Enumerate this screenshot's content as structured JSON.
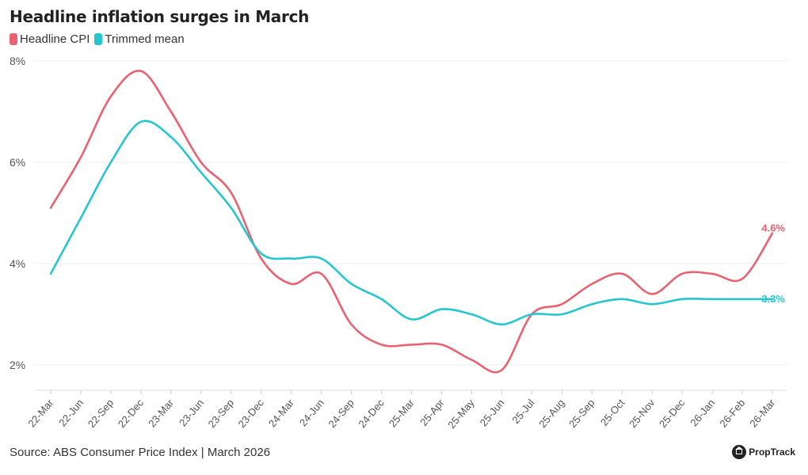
{
  "header": {
    "title": "Headline inflation surges in March"
  },
  "legend": [
    {
      "label": "Headline CPI",
      "color": "#e8636f"
    },
    {
      "label": "Trimmed mean",
      "color": "#26c6cf"
    }
  ],
  "footer": {
    "source": "Source: ABS Consumer Price Index | March 2026",
    "brand": "PropTrack"
  },
  "chart_data": {
    "type": "line",
    "title": "Headline inflation surges in March",
    "xlabel": "",
    "ylabel": "",
    "ylim": [
      1.5,
      8
    ],
    "yticks": [
      2,
      4,
      6,
      8
    ],
    "ytick_labels": [
      "2%",
      "4%",
      "6%",
      "8%"
    ],
    "grid": "horizontal",
    "legend_position": "top-left",
    "categories": [
      "22-Mar",
      "22-Jun",
      "22-Sep",
      "22-Dec",
      "23-Mar",
      "23-Jun",
      "23-Sep",
      "23-Dec",
      "24-Mar",
      "24-Jun",
      "24-Sep",
      "24-Dec",
      "25-Mar",
      "25-Apr",
      "25-May",
      "25-Jun",
      "25-Jul",
      "25-Aug",
      "25-Sep",
      "25-Oct",
      "25-Nov",
      "25-Dec",
      "26-Jan",
      "26-Feb",
      "26-Mar"
    ],
    "series": [
      {
        "name": "Headline CPI",
        "color": "#e8636f",
        "end_label": "4.6%",
        "values": [
          5.1,
          6.1,
          7.3,
          7.8,
          7.0,
          6.0,
          5.4,
          4.1,
          3.6,
          3.8,
          2.8,
          2.4,
          2.4,
          2.4,
          2.1,
          1.9,
          3.0,
          3.2,
          3.6,
          3.8,
          3.4,
          3.8,
          3.8,
          3.7,
          4.6
        ]
      },
      {
        "name": "Trimmed mean",
        "color": "#26c6cf",
        "end_label": "3.3%",
        "values": [
          3.8,
          4.9,
          6.0,
          6.8,
          6.5,
          5.8,
          5.1,
          4.2,
          4.1,
          4.1,
          3.6,
          3.3,
          2.9,
          3.1,
          3.0,
          2.8,
          3.0,
          3.0,
          3.2,
          3.3,
          3.2,
          3.3,
          3.3,
          3.3,
          3.3
        ]
      }
    ]
  }
}
